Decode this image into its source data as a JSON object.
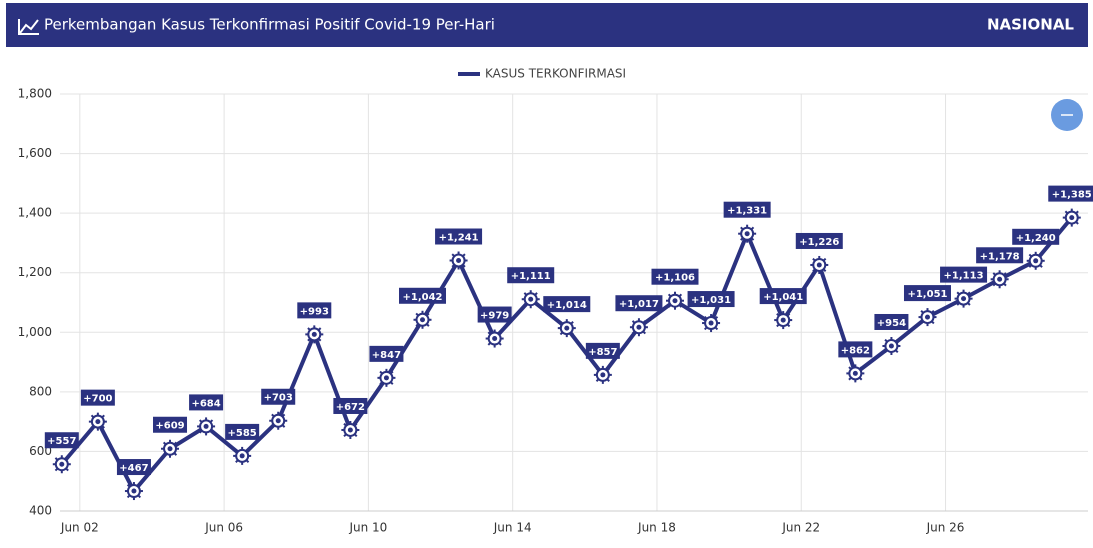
{
  "header": {
    "title": "Perkembangan Kasus Terkonfirmasi Positif Covid-19 Per-Hari",
    "region": "NASIONAL"
  },
  "chart_data": {
    "type": "line",
    "series": [
      {
        "name": "KASUS TERKONFIRMASI",
        "color": "#2b3280",
        "values": [
          557,
          700,
          467,
          609,
          684,
          585,
          703,
          993,
          672,
          847,
          1042,
          1241,
          979,
          1111,
          1014,
          857,
          1017,
          1106,
          1031,
          1331,
          1041,
          1226,
          862,
          954,
          1051,
          1113,
          1178,
          1240,
          1385
        ],
        "value_labels": [
          "+557",
          "+700",
          "+467",
          "+609",
          "+684",
          "+585",
          "+703",
          "+993",
          "+672",
          "+847",
          "+1,042",
          "+1,241",
          "+979",
          "+1,111",
          "+1,014",
          "+857",
          "+1,017",
          "+1,106",
          "+1,031",
          "+1,331",
          "+1,041",
          "+1,226",
          "+862",
          "+954",
          "+1,051",
          "+1,113",
          "+1,178",
          "+1,240",
          "+1,385"
        ]
      }
    ],
    "x": [
      1,
      2,
      3,
      4,
      5,
      6,
      7,
      8,
      9,
      10,
      11,
      12,
      13,
      14,
      15,
      16,
      17,
      18,
      19,
      20,
      21,
      22,
      23,
      24,
      25,
      26,
      27,
      28,
      29
    ],
    "xlim": [
      0.95,
      29.45
    ],
    "xticks": [
      {
        "value": 1.5,
        "label": "Jun 02"
      },
      {
        "value": 5.5,
        "label": "Jun 06"
      },
      {
        "value": 9.5,
        "label": "Jun 10"
      },
      {
        "value": 13.5,
        "label": "Jun 14"
      },
      {
        "value": 17.5,
        "label": "Jun 18"
      },
      {
        "value": 21.5,
        "label": "Jun 22"
      },
      {
        "value": 25.5,
        "label": "Jun 26"
      }
    ],
    "ylim": [
      400,
      1800
    ],
    "yticks": [
      400,
      600,
      800,
      {
        "value": 1000,
        "label": "1,000"
      },
      {
        "value": 1200,
        "label": "1,200"
      },
      {
        "value": 1400,
        "label": "1,400"
      },
      {
        "value": 1600,
        "label": "1,600"
      },
      {
        "value": 1800,
        "label": "1,800"
      }
    ],
    "grid": true
  }
}
